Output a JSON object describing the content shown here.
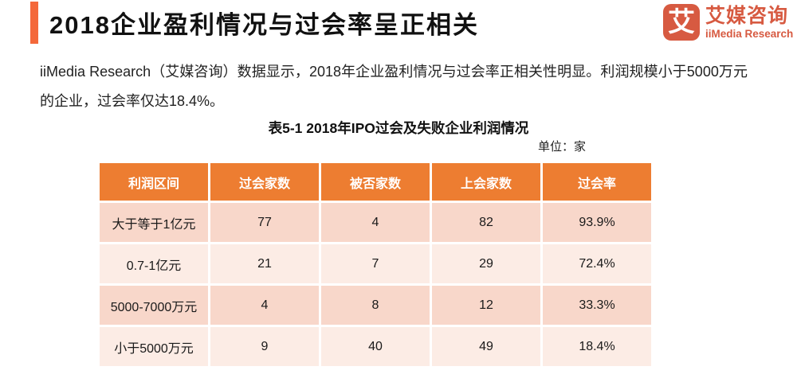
{
  "page": {
    "title": "2018企业盈利情况与过会率呈正相关",
    "body_text": "iiMedia Research（艾媒咨询）数据显示，2018年企业盈利情况与过会率正相关性明显。利润规模小于5000万元的企业，过会率仅达18.4%。"
  },
  "logo": {
    "mark": "艾",
    "name_cn": "艾媒咨询",
    "name_en": "iiMedia Research"
  },
  "table": {
    "caption": "表5-1 2018年IPO过会及失败企业利润情况",
    "unit_label": "单位：家",
    "headers": [
      "利润区间",
      "过会家数",
      "被否家数",
      "上会家数",
      "过会率"
    ],
    "rows": [
      [
        "大于等于1亿元",
        "77",
        "4",
        "82",
        "93.9%"
      ],
      [
        "0.7-1亿元",
        "21",
        "7",
        "29",
        "72.4%"
      ],
      [
        "5000-7000万元",
        "4",
        "8",
        "12",
        "33.3%"
      ],
      [
        "小于5000万元",
        "9",
        "40",
        "49",
        "18.4%"
      ]
    ]
  },
  "colors": {
    "accent_bar": "#F4683A",
    "header_bg": "#ED7D31",
    "row_dark": "#F8D7CA",
    "row_light": "#FCECE5",
    "logo": "#D75A41"
  },
  "chart_data": {
    "type": "table",
    "title": "表5-1 2018年IPO过会及失败企业利润情况",
    "unit": "家",
    "columns": [
      "利润区间",
      "过会家数",
      "被否家数",
      "上会家数",
      "过会率"
    ],
    "rows": [
      {
        "利润区间": "大于等于1亿元",
        "过会家数": 77,
        "被否家数": 4,
        "上会家数": 82,
        "过会率": "93.9%"
      },
      {
        "利润区间": "0.7-1亿元",
        "过会家数": 21,
        "被否家数": 7,
        "上会家数": 29,
        "过会率": "72.4%"
      },
      {
        "利润区间": "5000-7000万元",
        "过会家数": 4,
        "被否家数": 8,
        "上会家数": 12,
        "过会率": "33.3%"
      },
      {
        "利润区间": "小于5000万元",
        "过会家数": 9,
        "被否家数": 40,
        "上会家数": 49,
        "过会率": "18.4%"
      }
    ]
  }
}
